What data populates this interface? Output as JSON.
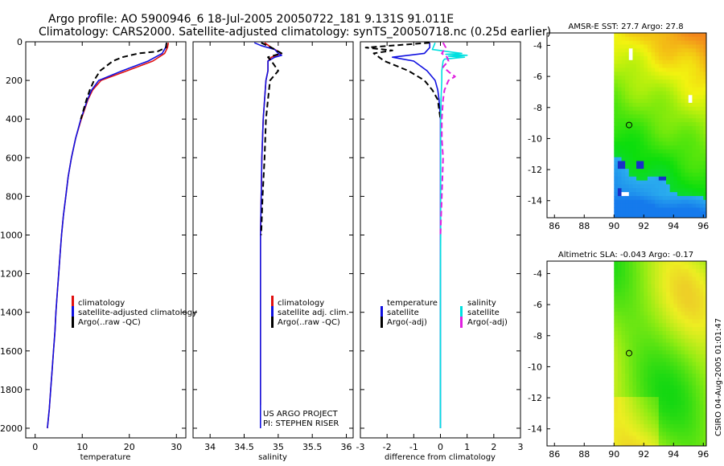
{
  "title_line1": "Argo profile: AO 5900946_6 18-Jul-2005 20050722_181 9.131S 91.011E",
  "title_line2": "Climatology: CARS2000. Satellite-adjusted climatology: synTS_20050718.nc (0.25d earlier)",
  "credit": {
    "project": "US ARGO PROJECT",
    "pi": "PI: STEPHEN RISER",
    "stamp": "CSIRO 04-Aug-2005 01:01:47"
  },
  "colors": {
    "climatology": "#e01010",
    "satellite": "#1010e0",
    "argo": "#000000",
    "sal_satellite": "#00e0e0",
    "sal_argo": "#e020e0"
  },
  "chart_data": [
    {
      "type": "line",
      "id": "temperature",
      "xlabel": "temperature",
      "ylabel": "",
      "xlim": [
        -2,
        32
      ],
      "ylim": [
        2050,
        0
      ],
      "xticks": [
        0,
        10,
        20,
        30
      ],
      "yticks": [
        0,
        200,
        400,
        600,
        800,
        1000,
        1200,
        1400,
        1600,
        1800,
        2000
      ],
      "legend": [
        "climatology",
        "satellite-adjusted climatology",
        "Argo(..raw -QC)"
      ],
      "series": [
        {
          "name": "climatology",
          "color": "#e01010",
          "style": "solid",
          "depth": [
            5,
            30,
            60,
            100,
            150,
            200,
            250,
            300,
            400,
            500,
            600,
            700,
            800,
            900,
            1000,
            1100,
            1200,
            1300,
            1400,
            1500,
            1600,
            1700,
            1800,
            1900,
            2000
          ],
          "values": [
            28.3,
            28.1,
            27.5,
            25.0,
            19.5,
            14.0,
            12.2,
            11.2,
            9.8,
            8.6,
            7.7,
            7.0,
            6.5,
            6.0,
            5.6,
            5.3,
            5.0,
            4.7,
            4.4,
            4.2,
            3.9,
            3.6,
            3.3,
            3.0,
            2.6
          ]
        },
        {
          "name": "satellite-adjusted climatology",
          "color": "#1010e0",
          "style": "solid",
          "depth": [
            5,
            30,
            60,
            100,
            150,
            200,
            250,
            300,
            400,
            500,
            600,
            700,
            800,
            900,
            1000,
            1100,
            1200,
            1300,
            1400,
            1500,
            1600,
            1700,
            1800,
            1900,
            2000
          ],
          "values": [
            27.9,
            27.7,
            27.0,
            24.0,
            18.5,
            13.5,
            12.0,
            11.1,
            9.7,
            8.6,
            7.7,
            7.0,
            6.5,
            6.0,
            5.6,
            5.3,
            5.0,
            4.7,
            4.4,
            4.2,
            3.9,
            3.6,
            3.3,
            3.0,
            2.6
          ]
        },
        {
          "name": "Argo(..raw -QC)",
          "color": "#000000",
          "style": "dashed",
          "depth": [
            5,
            30,
            50,
            60,
            80,
            100,
            150,
            200,
            250,
            300,
            400
          ],
          "values": [
            27.9,
            27.8,
            26.0,
            22.0,
            18.5,
            16.5,
            13.8,
            12.5,
            11.6,
            10.9,
            9.7
          ]
        }
      ]
    },
    {
      "type": "line",
      "id": "salinity",
      "xlabel": "salinity",
      "ylabel": "",
      "xlim": [
        33.75,
        36.1
      ],
      "ylim": [
        2050,
        0
      ],
      "xticks": [
        34,
        34.5,
        35,
        35.5,
        36
      ],
      "yticks": [
        0,
        200,
        400,
        600,
        800,
        1000,
        1200,
        1400,
        1600,
        1800,
        2000
      ],
      "legend": [
        "climatology",
        "satellite adj. clim.",
        "Argo(..raw -QC)"
      ],
      "series": [
        {
          "name": "climatology",
          "color": "#e01010",
          "style": "solid",
          "depth": [
            5,
            30,
            60,
            80,
            100,
            150,
            200,
            300,
            400,
            600,
            800,
            1000,
            1200,
            1400,
            1600,
            1800,
            1880
          ],
          "values": [
            34.8,
            34.9,
            35.05,
            34.9,
            34.85,
            34.85,
            34.82,
            34.8,
            34.78,
            34.76,
            34.75,
            34.74,
            34.74,
            34.74,
            34.74,
            34.74,
            34.74
          ]
        },
        {
          "name": "satellite adj. clim.",
          "color": "#1010e0",
          "style": "solid",
          "depth": [
            5,
            20,
            40,
            60,
            70,
            80,
            100,
            150,
            200,
            300,
            400,
            600,
            800,
            1000,
            1200,
            1400,
            1600,
            1800,
            2000
          ],
          "values": [
            34.65,
            34.75,
            34.95,
            35.0,
            35.05,
            34.95,
            34.85,
            34.85,
            34.82,
            34.8,
            34.78,
            34.76,
            34.75,
            34.74,
            34.74,
            34.74,
            34.74,
            34.74,
            34.74
          ]
        },
        {
          "name": "Argo(..raw -QC)",
          "color": "#000000",
          "style": "dashed",
          "depth": [
            5,
            30,
            60,
            80,
            100,
            150,
            200,
            300,
            400,
            600,
            800,
            1000
          ],
          "values": [
            34.75,
            34.9,
            35.05,
            34.85,
            34.9,
            35.0,
            34.88,
            34.85,
            34.82,
            34.8,
            34.77,
            34.75
          ]
        }
      ]
    },
    {
      "type": "line",
      "id": "difference",
      "xlabel": "difference from climatology",
      "ylabel": "",
      "xlim": [
        -3,
        3
      ],
      "ylim": [
        2050,
        0
      ],
      "xticks": [
        -3,
        -2,
        -1,
        0,
        1,
        2,
        3
      ],
      "yticks": [
        0,
        200,
        400,
        600,
        800,
        1000,
        1200,
        1400,
        1600,
        1800,
        2000
      ],
      "legend_left": [
        "temperature",
        "satellite",
        "Argo(-adj)"
      ],
      "legend_right": [
        "salinity",
        "satellite",
        "Argo(-adj)"
      ],
      "series": [
        {
          "name": "temperature satellite",
          "color": "#1010e0",
          "style": "solid",
          "depth": [
            5,
            30,
            60,
            80,
            100,
            150,
            200,
            250,
            300,
            400,
            500,
            600,
            800,
            1000,
            1200,
            1500,
            2000
          ],
          "values": [
            -0.4,
            -0.4,
            -0.6,
            -1.8,
            -1.0,
            -0.5,
            -0.2,
            -0.1,
            -0.05,
            0,
            0,
            0,
            0,
            0,
            0,
            0,
            0
          ]
        },
        {
          "name": "temperature Argo(-adj)",
          "color": "#000000",
          "style": "dashed",
          "depth": [
            5,
            30,
            45,
            60,
            100,
            150,
            200,
            250,
            300,
            350,
            400
          ],
          "values": [
            -0.4,
            -2.8,
            -1.8,
            -2.5,
            -2.1,
            -1.2,
            -0.6,
            -0.3,
            -0.1,
            -0.05,
            0
          ]
        },
        {
          "name": "salinity satellite",
          "color": "#00e0e0",
          "style": "solid",
          "depth": [
            5,
            40,
            55,
            60,
            65,
            70,
            75,
            80,
            90,
            100,
            150,
            200,
            300,
            400,
            600,
            800,
            1000,
            1200,
            1600,
            2000
          ],
          "values": [
            -0.2,
            -0.3,
            0.5,
            0.8,
            0.2,
            1.0,
            0.3,
            0.9,
            0.15,
            0.1,
            0.05,
            0.05,
            0.02,
            0.01,
            0.01,
            0.01,
            0.01,
            0.0,
            0.0,
            0.0
          ]
        },
        {
          "name": "salinity Argo(-adj)",
          "color": "#e020e0",
          "style": "dashed",
          "depth": [
            5,
            30,
            60,
            80,
            100,
            130,
            160,
            180,
            200,
            250,
            300,
            400,
            500,
            600,
            800,
            1000
          ],
          "values": [
            0.1,
            0.2,
            0.05,
            0.25,
            0.3,
            0.1,
            0.35,
            0.55,
            0.3,
            0.15,
            0.1,
            0.05,
            0.05,
            0.1,
            0.05,
            0.0
          ]
        }
      ]
    },
    {
      "type": "heatmap",
      "id": "sst-map",
      "title": "AMSR-E SST: 27.7 Argo: 27.8",
      "xlim": [
        85.5,
        96.2
      ],
      "ylim": [
        -15.1,
        -3.2
      ],
      "xticks": [
        86,
        88,
        90,
        92,
        94,
        96
      ],
      "yticks": [
        -4,
        -6,
        -8,
        -10,
        -12,
        -14
      ],
      "data_lon_range": [
        90,
        96.2
      ],
      "argo_position": [
        91.011,
        -9.131
      ]
    },
    {
      "type": "heatmap",
      "id": "sla-map",
      "title": "Altimetric SLA: -0.043 Argo: -0.17",
      "xlim": [
        85.5,
        96.2
      ],
      "ylim": [
        -15.1,
        -3.2
      ],
      "xticks": [
        86,
        88,
        90,
        92,
        94,
        96
      ],
      "yticks": [
        -4,
        -6,
        -8,
        -10,
        -12,
        -14
      ],
      "data_lon_range": [
        90,
        96.2
      ],
      "argo_position": [
        91.011,
        -9.131
      ]
    }
  ]
}
